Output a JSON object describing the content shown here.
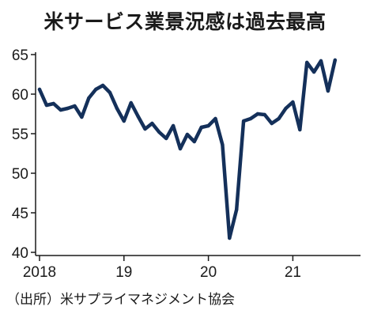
{
  "chart_data": {
    "type": "line",
    "title": "米サービス業景況感は過去最高",
    "source": "（出所）米サプライマネジメント協会",
    "xlabel": "",
    "ylabel": "",
    "ylim": [
      40,
      65
    ],
    "yticks": [
      40,
      45,
      50,
      55,
      60,
      65
    ],
    "xtick_labels": [
      "2018",
      "19",
      "20",
      "21"
    ],
    "grid": false,
    "line_color": "#14305a",
    "x_start": "2018-01",
    "series": [
      {
        "values": [
          60.6,
          58.6,
          58.8,
          58.0,
          58.2,
          58.5,
          57.1,
          59.5,
          60.6,
          61.1,
          60.2,
          58.2,
          56.6,
          58.9,
          57.2,
          55.6,
          56.3,
          55.2,
          54.4,
          56.0,
          53.1,
          54.9,
          54.0,
          55.8,
          56.0,
          56.9,
          53.6,
          41.8,
          45.4,
          56.6,
          56.9,
          57.5,
          57.4,
          56.3,
          56.9,
          58.2,
          59.0,
          55.5,
          64.0,
          62.8,
          64.2,
          60.4,
          64.3
        ]
      }
    ]
  }
}
